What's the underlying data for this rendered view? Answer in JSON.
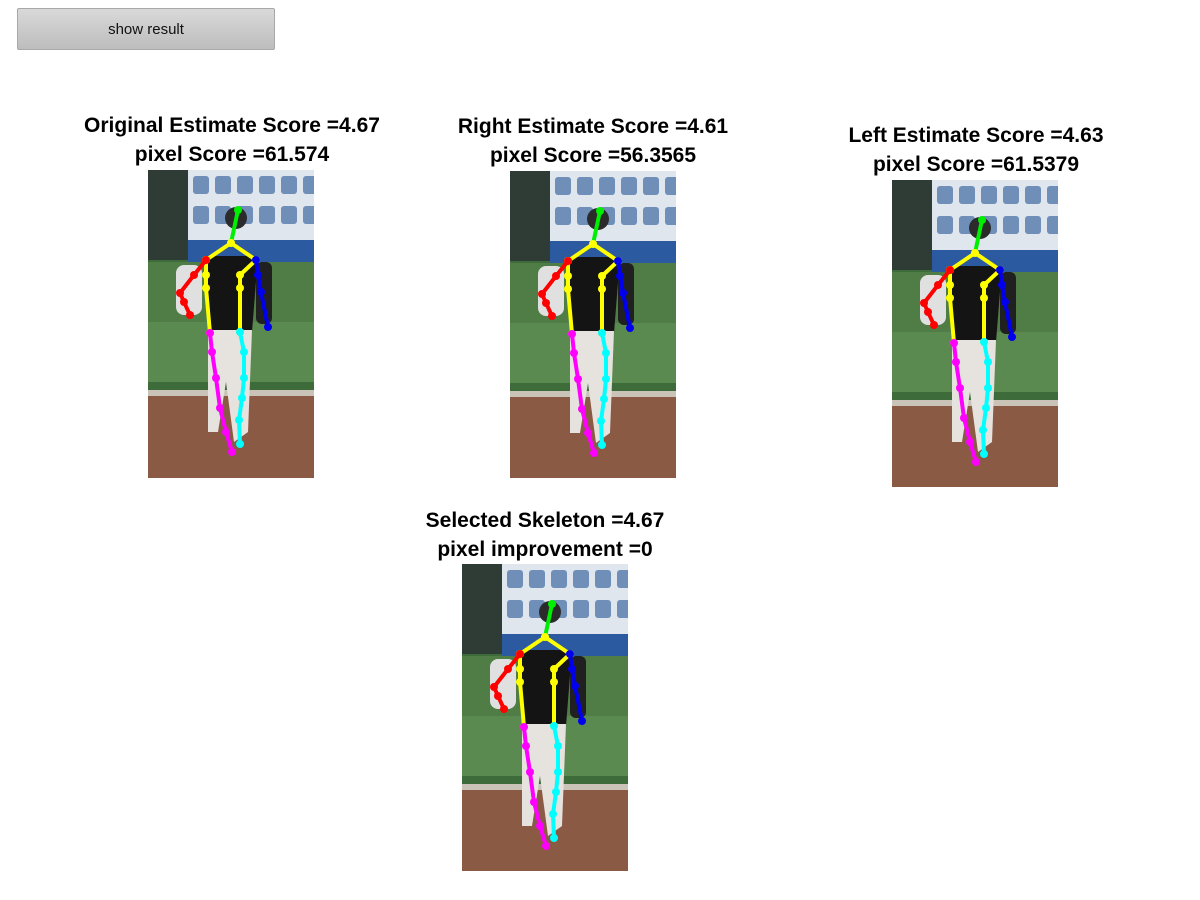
{
  "toolbar": {
    "show_result_label": "show result"
  },
  "panels": [
    {
      "id": "original",
      "title": "Original Estimate Score =4.67",
      "subtitle": "pixel Score =61.574"
    },
    {
      "id": "right",
      "title": "Right Estimate Score =4.61",
      "subtitle": "pixel Score =56.3565"
    },
    {
      "id": "left",
      "title": "Left Estimate Score =4.63",
      "subtitle": "pixel Score =61.5379"
    },
    {
      "id": "selected",
      "title": "Selected Skeleton =4.67",
      "subtitle": "pixel improvement =0"
    }
  ],
  "skeleton_colors": {
    "head": "#00ee00",
    "torso": "#ffff00",
    "right_arm": "#ff0000",
    "left_arm": "#0000ee",
    "right_leg": "#ff00ff",
    "left_leg": "#00ffff"
  }
}
